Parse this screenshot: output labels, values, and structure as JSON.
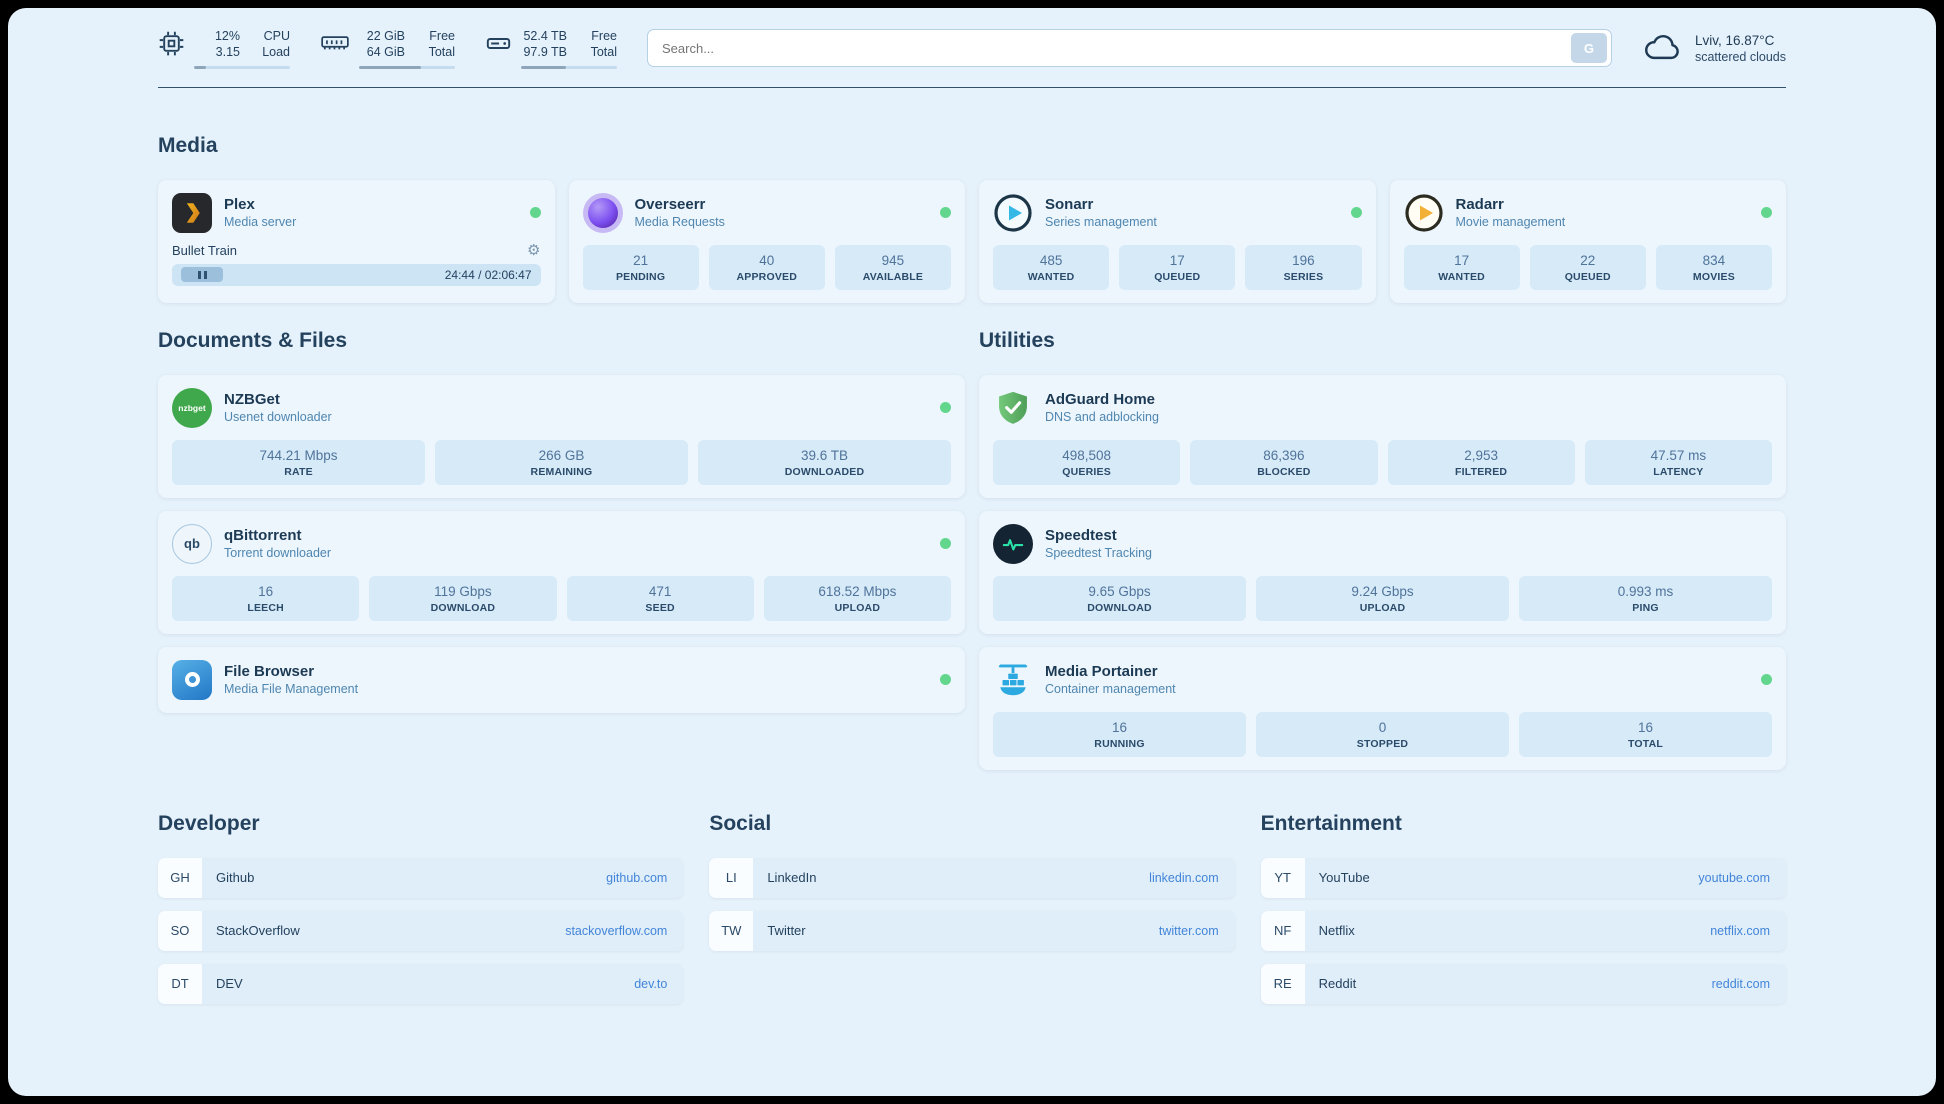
{
  "topbar": {
    "cpu": {
      "value_top": "12%",
      "value_bottom": "3.15",
      "label_top": "CPU",
      "label_bottom": "Load",
      "progress_percent": 12
    },
    "memory": {
      "value_top": "22 GiB",
      "value_bottom": "64 GiB",
      "label_top": "Free",
      "label_bottom": "Total",
      "progress_percent": 65
    },
    "disk": {
      "value_top": "52.4 TB",
      "value_bottom": "97.9 TB",
      "label_top": "Free",
      "label_bottom": "Total",
      "progress_percent": 47
    },
    "search": {
      "placeholder": "Search...",
      "provider_label": "G"
    },
    "weather": {
      "location": "Lviv, 16.87°C",
      "condition": "scattered clouds"
    }
  },
  "media": {
    "heading": "Media",
    "plex": {
      "name": "Plex",
      "subtitle": "Media server",
      "now_playing": {
        "title": "Bullet Train",
        "time": "24:44 / 02:06:47",
        "progress_percent": 20
      }
    },
    "overseerr": {
      "name": "Overseerr",
      "subtitle": "Media Requests",
      "stats": [
        {
          "value": "21",
          "label": "PENDING"
        },
        {
          "value": "40",
          "label": "APPROVED"
        },
        {
          "value": "945",
          "label": "AVAILABLE"
        }
      ]
    },
    "sonarr": {
      "name": "Sonarr",
      "subtitle": "Series management",
      "stats": [
        {
          "value": "485",
          "label": "WANTED"
        },
        {
          "value": "17",
          "label": "QUEUED"
        },
        {
          "value": "196",
          "label": "SERIES"
        }
      ]
    },
    "radarr": {
      "name": "Radarr",
      "subtitle": "Movie management",
      "stats": [
        {
          "value": "17",
          "label": "WANTED"
        },
        {
          "value": "22",
          "label": "QUEUED"
        },
        {
          "value": "834",
          "label": "MOVIES"
        }
      ]
    }
  },
  "documents": {
    "heading": "Documents & Files",
    "nzbget": {
      "name": "NZBGet",
      "subtitle": "Usenet downloader",
      "stats": [
        {
          "value": "744.21 Mbps",
          "label": "RATE"
        },
        {
          "value": "266 GB",
          "label": "REMAINING"
        },
        {
          "value": "39.6 TB",
          "label": "DOWNLOADED"
        }
      ]
    },
    "qbittorrent": {
      "name": "qBittorrent",
      "subtitle": "Torrent downloader",
      "stats": [
        {
          "value": "16",
          "label": "LEECH"
        },
        {
          "value": "119 Gbps",
          "label": "DOWNLOAD"
        },
        {
          "value": "471",
          "label": "SEED"
        },
        {
          "value": "618.52 Mbps",
          "label": "UPLOAD"
        }
      ]
    },
    "filebrowser": {
      "name": "File Browser",
      "subtitle": "Media File Management"
    }
  },
  "utilities": {
    "heading": "Utilities",
    "adguard": {
      "name": "AdGuard Home",
      "subtitle": "DNS and adblocking",
      "stats": [
        {
          "value": "498,508",
          "label": "QUERIES"
        },
        {
          "value": "86,396",
          "label": "BLOCKED"
        },
        {
          "value": "2,953",
          "label": "FILTERED"
        },
        {
          "value": "47.57 ms",
          "label": "LATENCY"
        }
      ]
    },
    "speedtest": {
      "name": "Speedtest",
      "subtitle": "Speedtest Tracking",
      "stats": [
        {
          "value": "9.65 Gbps",
          "label": "DOWNLOAD"
        },
        {
          "value": "9.24 Gbps",
          "label": "UPLOAD"
        },
        {
          "value": "0.993 ms",
          "label": "PING"
        }
      ]
    },
    "portainer": {
      "name": "Media Portainer",
      "subtitle": "Container management",
      "stats": [
        {
          "value": "16",
          "label": "RUNNING"
        },
        {
          "value": "0",
          "label": "STOPPED"
        },
        {
          "value": "16",
          "label": "TOTAL"
        }
      ]
    }
  },
  "bookmarks": {
    "developer": {
      "heading": "Developer",
      "items": [
        {
          "abbr": "GH",
          "name": "Github",
          "url": "github.com"
        },
        {
          "abbr": "SO",
          "name": "StackOverflow",
          "url": "stackoverflow.com"
        },
        {
          "abbr": "DT",
          "name": "DEV",
          "url": "dev.to"
        }
      ]
    },
    "social": {
      "heading": "Social",
      "items": [
        {
          "abbr": "LI",
          "name": "LinkedIn",
          "url": "linkedin.com"
        },
        {
          "abbr": "TW",
          "name": "Twitter",
          "url": "twitter.com"
        }
      ]
    },
    "entertainment": {
      "heading": "Entertainment",
      "items": [
        {
          "abbr": "YT",
          "name": "YouTube",
          "url": "youtube.com"
        },
        {
          "abbr": "NF",
          "name": "Netflix",
          "url": "netflix.com"
        },
        {
          "abbr": "RE",
          "name": "Reddit",
          "url": "reddit.com"
        }
      ]
    }
  },
  "icons": {
    "gear_glyph": "⚙",
    "nzbget_label": "nzbget",
    "qb_label": "qb"
  },
  "colors": {
    "page_background": "#e6f2fb",
    "card_background": "#edf6fd",
    "stat_background": "#d6eaf8",
    "status_online": "#63d68e",
    "link": "#4285d8",
    "text_primary": "#1d3a54",
    "text_secondary": "#4f86b0"
  }
}
